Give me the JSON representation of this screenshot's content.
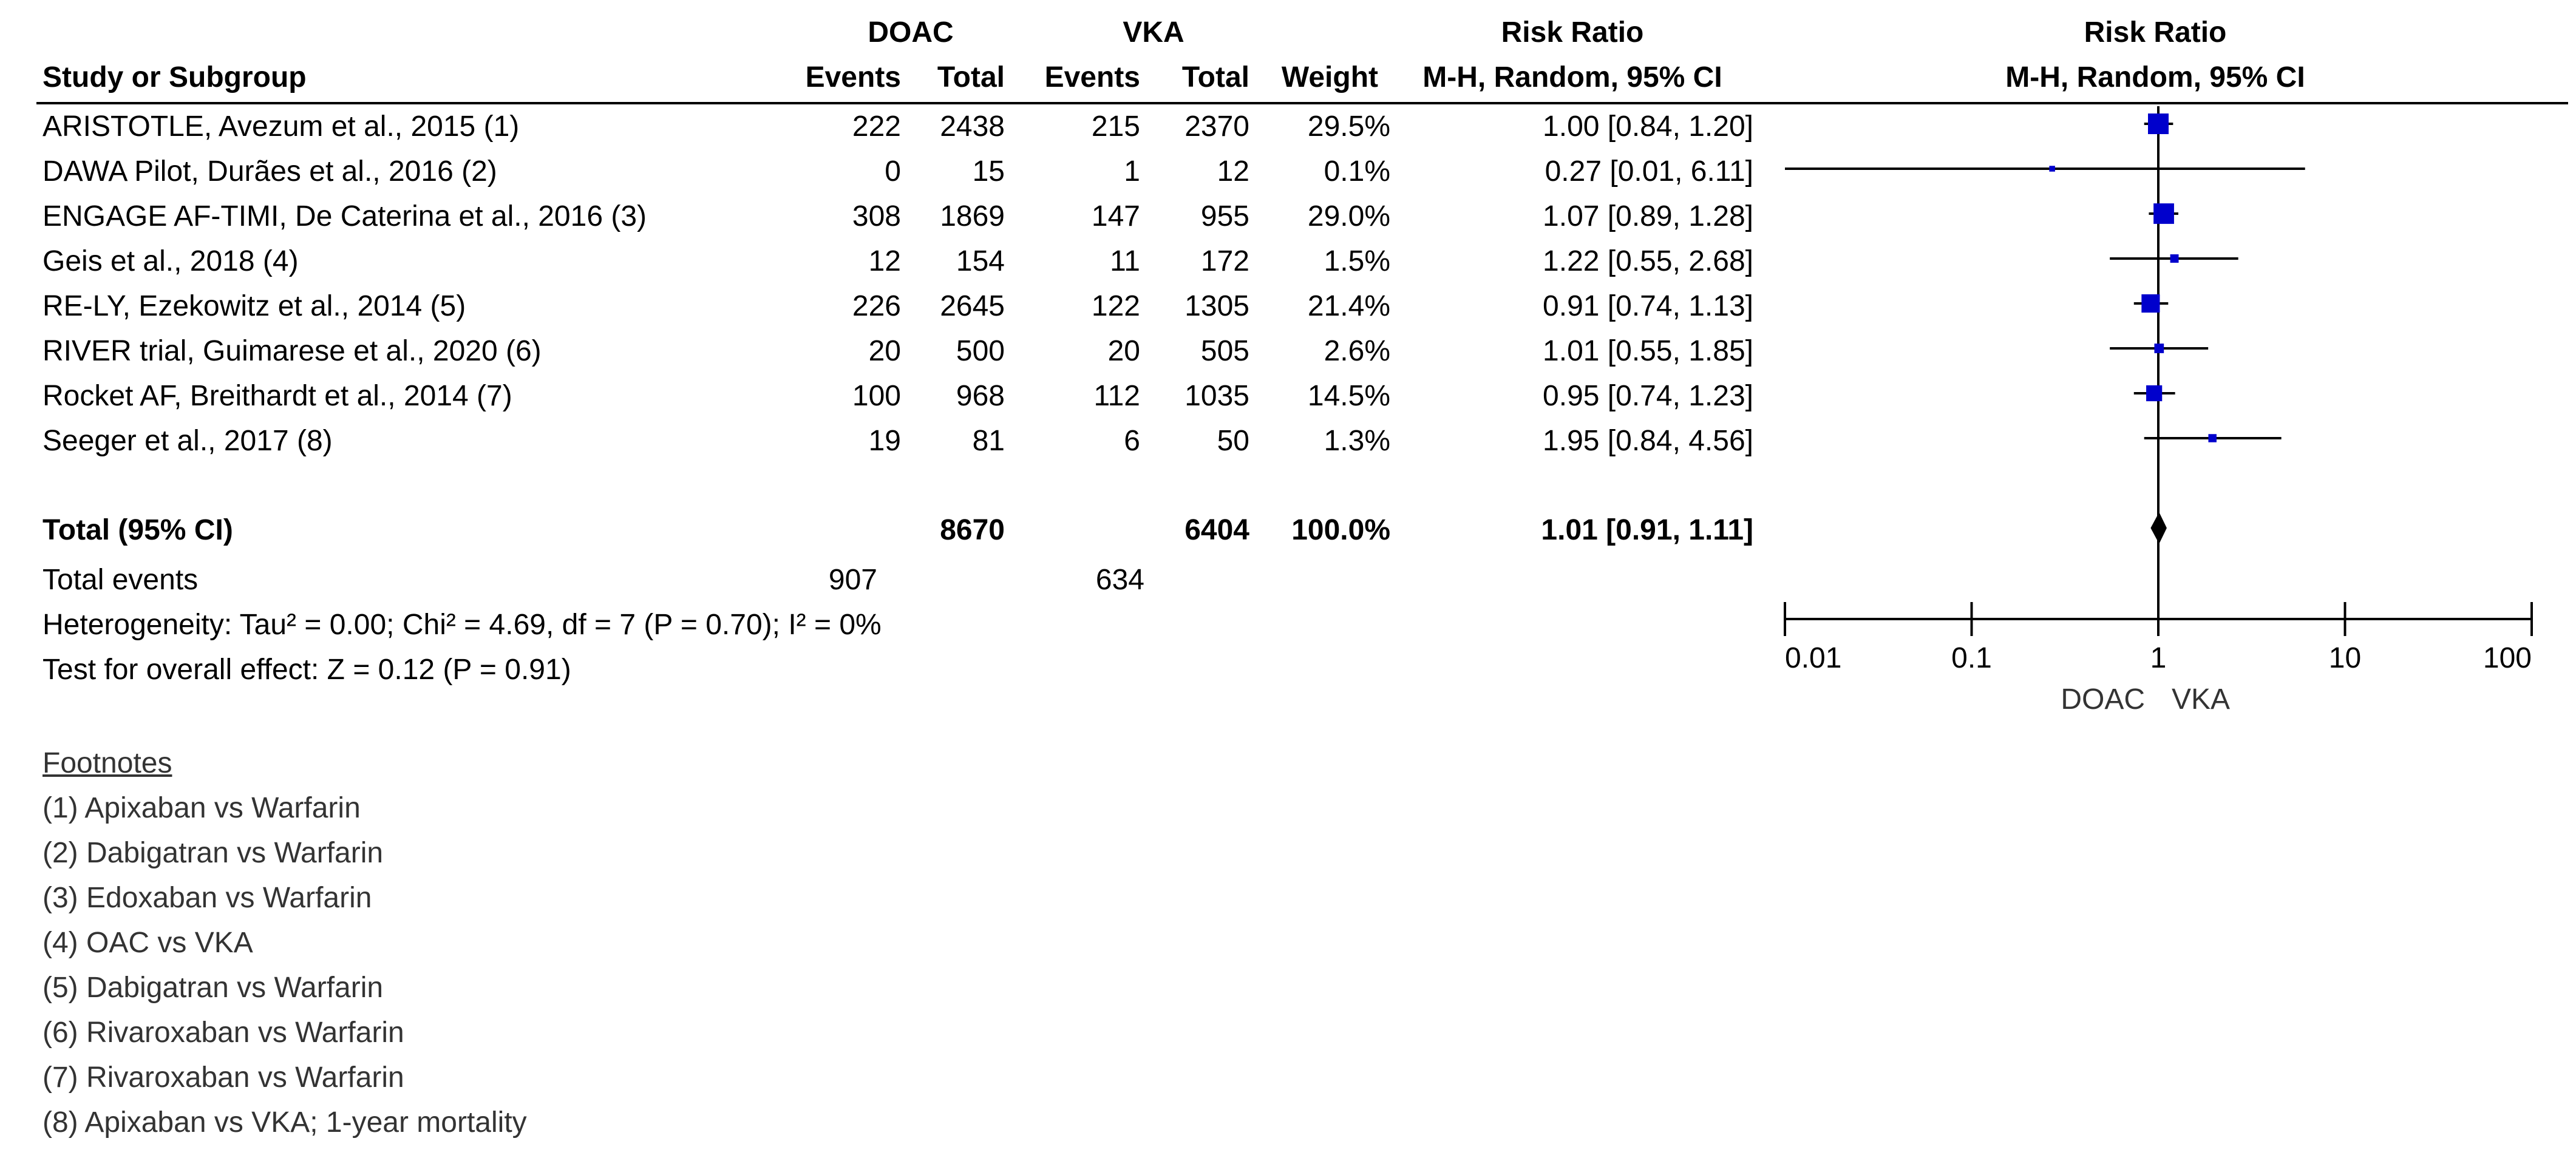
{
  "header": {
    "group1": "DOAC",
    "group2": "VKA",
    "rr_title": "Risk Ratio",
    "rr_method": "M-H, Random, 95% CI",
    "plot_title": "Risk Ratio",
    "plot_method": "M-H, Random, 95% CI",
    "study_col": "Study or Subgroup",
    "events": "Events",
    "total": "Total",
    "weight": "Weight"
  },
  "studies": [
    {
      "name": "ARISTOTLE, Avezum et al., 2015 (1)",
      "e1": "222",
      "t1": "2438",
      "e2": "215",
      "t2": "2370",
      "weight": "29.5%",
      "ci": "1.00 [0.84, 1.20]"
    },
    {
      "name": "DAWA Pilot, Durães et al., 2016 (2)",
      "e1": "0",
      "t1": "15",
      "e2": "1",
      "t2": "12",
      "weight": "0.1%",
      "ci": "0.27 [0.01, 6.11]"
    },
    {
      "name": "ENGAGE AF-TIMI, De Caterina et al., 2016 (3)",
      "e1": "308",
      "t1": "1869",
      "e2": "147",
      "t2": "955",
      "weight": "29.0%",
      "ci": "1.07 [0.89, 1.28]"
    },
    {
      "name": "Geis et al., 2018 (4)",
      "e1": "12",
      "t1": "154",
      "e2": "11",
      "t2": "172",
      "weight": "1.5%",
      "ci": "1.22 [0.55, 2.68]"
    },
    {
      "name": "RE-LY, Ezekowitz et al., 2014 (5)",
      "e1": "226",
      "t1": "2645",
      "e2": "122",
      "t2": "1305",
      "weight": "21.4%",
      "ci": "0.91 [0.74, 1.13]"
    },
    {
      "name": "RIVER trial, Guimarese et al., 2020 (6)",
      "e1": "20",
      "t1": "500",
      "e2": "20",
      "t2": "505",
      "weight": "2.6%",
      "ci": "1.01 [0.55, 1.85]"
    },
    {
      "name": "Rocket AF, Breithardt et al., 2014 (7)",
      "e1": "100",
      "t1": "968",
      "e2": "112",
      "t2": "1035",
      "weight": "14.5%",
      "ci": "0.95 [0.74, 1.23]"
    },
    {
      "name": "Seeger et al., 2017 (8)",
      "e1": "19",
      "t1": "81",
      "e2": "6",
      "t2": "50",
      "weight": "1.3%",
      "ci": "1.95 [0.84, 4.56]"
    }
  ],
  "total": {
    "label": "Total (95% CI)",
    "t1": "8670",
    "t2": "6404",
    "weight": "100.0%",
    "ci": "1.01 [0.91, 1.11]"
  },
  "total_events": {
    "label": "Total events",
    "e1": "907",
    "e2": "634"
  },
  "heterogeneity": "Heterogeneity: Tau² = 0.00; Chi² = 4.69, df = 7 (P = 0.70); I² = 0%",
  "overall_effect": "Test for overall effect: Z = 0.12 (P = 0.91)",
  "footnotes": {
    "title": "Footnotes",
    "items": [
      "(1) Apixaban vs Warfarin",
      "(2) Dabigatran vs Warfarin",
      "(3) Edoxaban vs Warfarin",
      "(4) OAC vs VKA",
      "(5) Dabigatran vs Warfarin",
      "(6) Rivaroxaban vs Warfarin",
      "(7) Rivaroxaban vs Warfarin",
      "(8) Apixaban vs VKA; 1-year mortality"
    ]
  },
  "chart_data": {
    "type": "forest",
    "x_scale": "log",
    "xlim": [
      0.01,
      100
    ],
    "ticks": [
      "0.01",
      "0.1",
      "1",
      "10",
      "100"
    ],
    "tick_values": [
      0.01,
      0.1,
      1,
      10,
      100
    ],
    "favours_left": "DOAC",
    "favours_right": "VKA",
    "marker_color": "#0000cc",
    "points": [
      {
        "rr": 1.0,
        "lo": 0.84,
        "hi": 1.2,
        "weight": 29.5
      },
      {
        "rr": 0.27,
        "lo": 0.01,
        "hi": 6.11,
        "weight": 0.1
      },
      {
        "rr": 1.07,
        "lo": 0.89,
        "hi": 1.28,
        "weight": 29.0
      },
      {
        "rr": 1.22,
        "lo": 0.55,
        "hi": 2.68,
        "weight": 1.5
      },
      {
        "rr": 0.91,
        "lo": 0.74,
        "hi": 1.13,
        "weight": 21.4
      },
      {
        "rr": 1.01,
        "lo": 0.55,
        "hi": 1.85,
        "weight": 2.6
      },
      {
        "rr": 0.95,
        "lo": 0.74,
        "hi": 1.23,
        "weight": 14.5
      },
      {
        "rr": 1.95,
        "lo": 0.84,
        "hi": 4.56,
        "weight": 1.3
      }
    ],
    "pooled": {
      "rr": 1.01,
      "lo": 0.91,
      "hi": 1.11
    }
  }
}
